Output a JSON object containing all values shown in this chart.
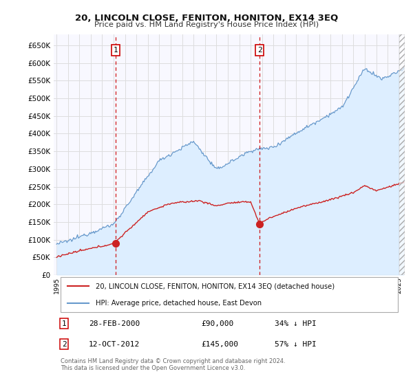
{
  "title": "20, LINCOLN CLOSE, FENITON, HONITON, EX14 3EQ",
  "subtitle": "Price paid vs. HM Land Registry's House Price Index (HPI)",
  "ylim": [
    0,
    680000
  ],
  "yticks": [
    0,
    50000,
    100000,
    150000,
    200000,
    250000,
    300000,
    350000,
    400000,
    450000,
    500000,
    550000,
    600000,
    650000
  ],
  "xlim_start": 1994.75,
  "xlim_end": 2025.5,
  "hpi_fill_color": "#ddeeff",
  "hpi_line_color": "#6699cc",
  "price_color": "#cc2222",
  "sale1_x": 2000.16,
  "sale1_y": 90000,
  "sale2_x": 2012.78,
  "sale2_y": 145000,
  "background_color": "#ffffff",
  "plot_bg": "#f8f8ff",
  "grid_color": "#dddddd",
  "legend_entry1": "20, LINCOLN CLOSE, FENITON, HONITON, EX14 3EQ (detached house)",
  "legend_entry2": "HPI: Average price, detached house, East Devon",
  "note1_label": "1",
  "note1_date": "28-FEB-2000",
  "note1_price": "£90,000",
  "note1_hpi": "34% ↓ HPI",
  "note2_label": "2",
  "note2_date": "12-OCT-2012",
  "note2_price": "£145,000",
  "note2_hpi": "57% ↓ HPI",
  "footer": "Contains HM Land Registry data © Crown copyright and database right 2024.\nThis data is licensed under the Open Government Licence v3.0."
}
